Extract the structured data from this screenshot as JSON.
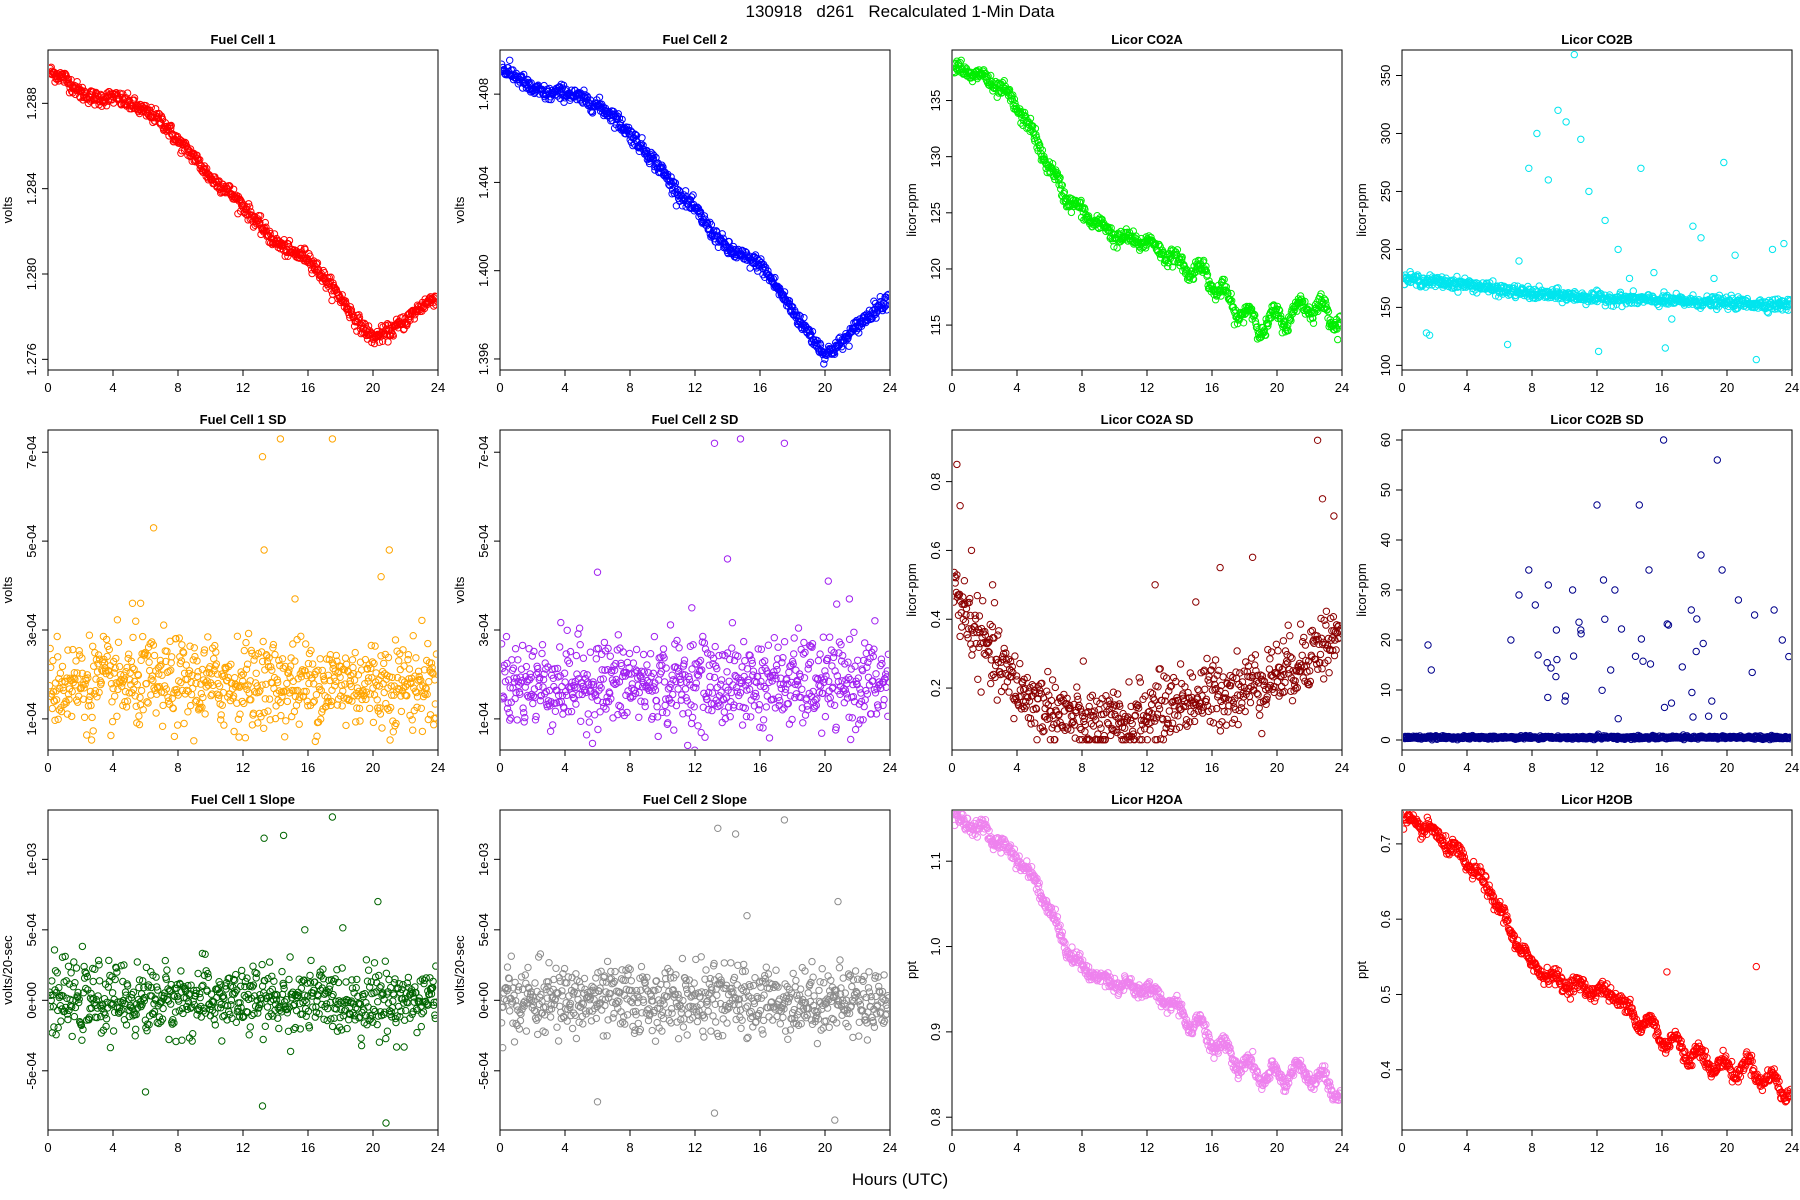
{
  "figure": {
    "title": "130918   d261   Recalculated 1-Min Data",
    "xlabel": "Hours (UTC)"
  },
  "chart_data": [
    {
      "type": "scatter",
      "title": "Fuel Cell 1",
      "ylabel": "volts",
      "xlim": [
        0,
        24
      ],
      "ylim": [
        1.2755,
        1.2905
      ],
      "yticks": [
        1.276,
        1.28,
        1.284,
        1.288
      ],
      "ytick_labels": [
        "1.276",
        "1.280",
        "1.284",
        "1.288"
      ],
      "xticks": [
        0,
        4,
        8,
        12,
        16,
        20,
        24
      ],
      "color": "#ff0000",
      "points_description": "1440 one-minute points",
      "series": [
        {
          "x": [
            0,
            1,
            2,
            3,
            4,
            5,
            6,
            7,
            8,
            9,
            10,
            11,
            12,
            13,
            14,
            15,
            16,
            17,
            18,
            19,
            20,
            21,
            22,
            23,
            24
          ],
          "y": [
            1.2895,
            1.2892,
            1.2885,
            1.2882,
            1.2883,
            1.288,
            1.2876,
            1.2872,
            1.2862,
            1.2855,
            1.2845,
            1.284,
            1.2832,
            1.2823,
            1.2815,
            1.281,
            1.2808,
            1.2798,
            1.2789,
            1.2778,
            1.277,
            1.2773,
            1.2778,
            1.2785,
            1.279
          ]
        }
      ]
    },
    {
      "type": "scatter",
      "title": "Fuel Cell 2",
      "ylabel": "volts",
      "xlim": [
        0,
        24
      ],
      "ylim": [
        1.3955,
        1.41
      ],
      "yticks": [
        1.396,
        1.4,
        1.404,
        1.408
      ],
      "ytick_labels": [
        "1.396",
        "1.400",
        "1.404",
        "1.408"
      ],
      "xticks": [
        0,
        4,
        8,
        12,
        16,
        20,
        24
      ],
      "color": "#0000ff",
      "series": [
        {
          "x": [
            0,
            1,
            2,
            3,
            4,
            5,
            6,
            7,
            8,
            9,
            10,
            11,
            12,
            13,
            14,
            15,
            16,
            17,
            18,
            19,
            20,
            21,
            22,
            23,
            24
          ],
          "y": [
            1.4092,
            1.4088,
            1.4082,
            1.408,
            1.4081,
            1.4078,
            1.4075,
            1.407,
            1.4062,
            1.4054,
            1.4045,
            1.4035,
            1.4028,
            1.4018,
            1.401,
            1.4006,
            1.4003,
            1.3993,
            1.3982,
            1.3972,
            1.3962,
            1.3967,
            1.3975,
            1.3982,
            1.3988
          ]
        }
      ]
    },
    {
      "type": "scatter",
      "title": "Licor CO2A",
      "ylabel": "licor-ppm",
      "xlim": [
        0,
        24
      ],
      "ylim": [
        111,
        139.5
      ],
      "yticks": [
        115,
        120,
        125,
        130,
        135
      ],
      "ytick_labels": [
        "115",
        "120",
        "125",
        "130",
        "135"
      ],
      "xticks": [
        0,
        4,
        8,
        12,
        16,
        20,
        24
      ],
      "color": "#00ee00",
      "series": [
        {
          "x": [
            0,
            1,
            2,
            3,
            4,
            5,
            6,
            7,
            8,
            9,
            10,
            11,
            12,
            13,
            14,
            15,
            16,
            17,
            18,
            19,
            20,
            21,
            22,
            23,
            24
          ],
          "y": [
            138,
            137.5,
            137,
            136,
            134.5,
            132,
            129,
            126.5,
            125,
            124,
            123,
            122.5,
            122.5,
            121.5,
            120.5,
            120,
            119,
            117,
            116,
            115,
            115.5,
            116,
            117,
            116,
            115.5
          ]
        }
      ]
    },
    {
      "type": "scatter",
      "title": "Licor CO2B",
      "ylabel": "licor-ppm",
      "xlim": [
        0,
        24
      ],
      "ylim": [
        96,
        372
      ],
      "yticks": [
        100,
        150,
        200,
        250,
        300,
        350
      ],
      "ytick_labels": [
        "100",
        "150",
        "200",
        "250",
        "300",
        "350"
      ],
      "xticks": [
        0,
        4,
        8,
        12,
        16,
        20,
        24
      ],
      "color": "#00e5ee",
      "series": [
        {
          "x": [
            0,
            2,
            4,
            6,
            8,
            10,
            12,
            14,
            16,
            18,
            20,
            22,
            24
          ],
          "y": [
            175,
            172,
            170,
            165,
            162,
            160,
            158,
            157,
            156,
            155,
            154,
            153,
            152
          ]
        }
      ],
      "outliers": {
        "x": [
          1.5,
          1.7,
          6.5,
          7.2,
          7.8,
          8.3,
          9.0,
          9.6,
          10.1,
          10.6,
          11.0,
          11.5,
          12.1,
          12.5,
          13.3,
          14.0,
          14.7,
          15.5,
          16.2,
          16.6,
          17.9,
          18.4,
          19.2,
          19.8,
          20.5,
          21.8,
          22.8,
          23.5
        ],
        "y": [
          128,
          126,
          118,
          190,
          270,
          300,
          260,
          320,
          310,
          368,
          295,
          250,
          112,
          225,
          200,
          175,
          270,
          180,
          115,
          140,
          220,
          210,
          175,
          275,
          195,
          105,
          200,
          205
        ]
      }
    },
    {
      "type": "scatter",
      "title": "Fuel Cell 1 SD",
      "ylabel": "volts",
      "xlim": [
        0,
        24
      ],
      "ylim": [
        3e-05,
        0.00075
      ],
      "yticks": [
        0.0001,
        0.0003,
        0.0005,
        0.0007
      ],
      "ytick_labels": [
        "1e-04",
        "3e-04",
        "5e-04",
        "7e-04"
      ],
      "xticks": [
        0,
        4,
        8,
        12,
        16,
        20,
        24
      ],
      "color": "#ffa500",
      "series": [
        {
          "name": "",
          "x": [
            0,
            24
          ],
          "y": [
            0.00018,
            0.00018
          ]
        }
      ],
      "outliers": {
        "x": [
          5.2,
          5.7,
          6.5,
          13.2,
          13.3,
          14.3,
          15.2,
          17.5,
          20.5,
          21.0
        ],
        "y": [
          0.00036,
          0.00036,
          0.00053,
          0.00069,
          0.00048,
          0.00073,
          0.00037,
          0.00073,
          0.00042,
          0.00048
        ]
      }
    },
    {
      "type": "scatter",
      "title": "Fuel Cell 2 SD",
      "ylabel": "volts",
      "xlim": [
        0,
        24
      ],
      "ylim": [
        3e-05,
        0.00075
      ],
      "yticks": [
        0.0001,
        0.0003,
        0.0005,
        0.0007
      ],
      "ytick_labels": [
        "1e-04",
        "3e-04",
        "5e-04",
        "7e-04"
      ],
      "xticks": [
        0,
        4,
        8,
        12,
        16,
        20,
        24
      ],
      "color": "#a020f0",
      "series": [
        {
          "x": [
            0,
            24
          ],
          "y": [
            0.00018,
            0.00018
          ]
        }
      ],
      "outliers": {
        "x": [
          6.0,
          11.8,
          13.2,
          14.0,
          14.8,
          17.5,
          20.2,
          21.5
        ],
        "y": [
          0.00043,
          0.00035,
          0.00072,
          0.00046,
          0.00073,
          0.00072,
          0.00041,
          0.00037
        ]
      }
    },
    {
      "type": "scatter",
      "title": "Licor CO2A SD",
      "ylabel": "licor-ppm",
      "xlim": [
        0,
        24
      ],
      "ylim": [
        0.02,
        0.95
      ],
      "yticks": [
        0.2,
        0.4,
        0.6,
        0.8
      ],
      "ytick_labels": [
        "0.2",
        "0.4",
        "0.6",
        "0.8"
      ],
      "xticks": [
        0,
        4,
        8,
        12,
        16,
        20,
        24
      ],
      "color": "#8b0000",
      "series": [
        {
          "x": [
            0,
            1,
            2,
            3,
            4,
            5,
            6,
            7,
            8,
            9,
            10,
            11,
            12,
            13,
            14,
            15,
            16,
            17,
            18,
            19,
            20,
            21,
            22,
            23,
            24
          ],
          "y": [
            0.5,
            0.4,
            0.32,
            0.26,
            0.2,
            0.16,
            0.14,
            0.12,
            0.1,
            0.09,
            0.09,
            0.1,
            0.12,
            0.14,
            0.16,
            0.17,
            0.18,
            0.19,
            0.2,
            0.22,
            0.24,
            0.26,
            0.3,
            0.33,
            0.35
          ]
        }
      ],
      "outliers": {
        "x": [
          0.3,
          0.5,
          1.2,
          2.5,
          12.5,
          15.0,
          16.5,
          18.5,
          22.5,
          22.8,
          23.5
        ],
        "y": [
          0.85,
          0.73,
          0.6,
          0.5,
          0.5,
          0.45,
          0.55,
          0.58,
          0.92,
          0.75,
          0.7
        ]
      }
    },
    {
      "type": "scatter",
      "title": "Licor CO2B SD",
      "ylabel": "licor-ppm",
      "xlim": [
        0,
        24
      ],
      "ylim": [
        -2,
        62
      ],
      "yticks": [
        0,
        10,
        20,
        30,
        40,
        50,
        60
      ],
      "ytick_labels": [
        "0",
        "10",
        "20",
        "30",
        "40",
        "50",
        "60"
      ],
      "xticks": [
        0,
        4,
        8,
        12,
        16,
        20,
        24
      ],
      "color": "#00008b",
      "series": [
        {
          "x": [
            0,
            24
          ],
          "y": [
            0.5,
            0.5
          ]
        }
      ],
      "outliers": {
        "x": [
          1.6,
          1.8,
          6.7,
          7.2,
          7.8,
          8.2,
          9.0,
          9.5,
          10.5,
          11.0,
          12.0,
          12.4,
          13.1,
          14.6,
          15.2,
          16.1,
          16.4,
          17.8,
          18.4,
          19.4,
          19.7,
          20.7,
          21.7,
          22.9,
          23.4
        ],
        "y": [
          19,
          14,
          20,
          29,
          34,
          27,
          31,
          22,
          30,
          22,
          47,
          32,
          30,
          47,
          34,
          60,
          23,
          26,
          37,
          56,
          34,
          28,
          25,
          26,
          20
        ]
      }
    },
    {
      "type": "scatter",
      "title": "Fuel Cell 1 Slope",
      "ylabel": "volts/20-sec",
      "xlim": [
        0,
        24
      ],
      "ylim": [
        -0.00092,
        0.00135
      ],
      "yticks": [
        -0.0005,
        0.0,
        0.0005,
        0.001
      ],
      "ytick_labels": [
        "-5e-04",
        "0e+00",
        "5e-04",
        "1e-03"
      ],
      "xticks": [
        0,
        4,
        8,
        12,
        16,
        20,
        24
      ],
      "color": "#006400",
      "series": [
        {
          "x": [
            0,
            24
          ],
          "y": [
            0,
            0
          ]
        }
      ],
      "outliers": {
        "x": [
          6.0,
          13.2,
          13.3,
          14.5,
          15.8,
          17.5,
          20.3,
          20.8
        ],
        "y": [
          -0.00065,
          -0.00075,
          0.00115,
          0.00117,
          0.0005,
          0.0013,
          0.0007,
          -0.00087
        ]
      }
    },
    {
      "type": "scatter",
      "title": "Fuel Cell 2 Slope",
      "ylabel": "volts/20-sec",
      "xlim": [
        0,
        24
      ],
      "ylim": [
        -0.00092,
        0.00135
      ],
      "yticks": [
        -0.0005,
        0.0,
        0.0005,
        0.001
      ],
      "ytick_labels": [
        "-5e-04",
        "0e+00",
        "5e-04",
        "1e-03"
      ],
      "xticks": [
        0,
        4,
        8,
        12,
        16,
        20,
        24
      ],
      "color": "#8c8c8c",
      "series": [
        {
          "x": [
            0,
            24
          ],
          "y": [
            0,
            0
          ]
        }
      ],
      "outliers": {
        "x": [
          6.0,
          13.2,
          13.4,
          14.5,
          15.2,
          17.5,
          20.8,
          20.6
        ],
        "y": [
          -0.00072,
          -0.0008,
          0.00122,
          0.00118,
          0.0006,
          0.00128,
          0.0007,
          -0.00085
        ]
      }
    },
    {
      "type": "scatter",
      "title": "Licor H2OA",
      "ylabel": "ppt",
      "xlim": [
        0,
        24
      ],
      "ylim": [
        0.785,
        1.16
      ],
      "yticks": [
        0.8,
        0.9,
        1.0,
        1.1
      ],
      "ytick_labels": [
        "0.8",
        "0.9",
        "1.0",
        "1.1"
      ],
      "xticks": [
        0,
        4,
        8,
        12,
        16,
        20,
        24
      ],
      "color": "#ee82ee",
      "series": [
        {
          "x": [
            0,
            1,
            2,
            3,
            4,
            5,
            6,
            7,
            8,
            9,
            10,
            11,
            12,
            13,
            14,
            15,
            16,
            17,
            18,
            19,
            20,
            21,
            22,
            23,
            24
          ],
          "y": [
            1.15,
            1.145,
            1.135,
            1.12,
            1.105,
            1.08,
            1.045,
            1.0,
            0.975,
            0.965,
            0.958,
            0.952,
            0.948,
            0.94,
            0.925,
            0.91,
            0.89,
            0.875,
            0.86,
            0.85,
            0.845,
            0.855,
            0.85,
            0.84,
            0.83
          ]
        }
      ]
    },
    {
      "type": "scatter",
      "title": "Licor H2OB",
      "ylabel": "ppt",
      "xlim": [
        0,
        24
      ],
      "ylim": [
        0.32,
        0.745
      ],
      "yticks": [
        0.4,
        0.5,
        0.6,
        0.7
      ],
      "ytick_labels": [
        "0.4",
        "0.5",
        "0.6",
        "0.7"
      ],
      "xticks": [
        0,
        4,
        8,
        12,
        16,
        20,
        24
      ],
      "color": "#ff0000",
      "series": [
        {
          "x": [
            0,
            1,
            2,
            3,
            4,
            5,
            6,
            7,
            8,
            9,
            10,
            11,
            12,
            13,
            14,
            15,
            16,
            17,
            18,
            19,
            20,
            21,
            22,
            23,
            24
          ],
          "y": [
            0.73,
            0.725,
            0.715,
            0.695,
            0.675,
            0.65,
            0.615,
            0.57,
            0.54,
            0.525,
            0.515,
            0.51,
            0.505,
            0.5,
            0.48,
            0.46,
            0.445,
            0.43,
            0.42,
            0.41,
            0.4,
            0.405,
            0.395,
            0.38,
            0.37
          ]
        }
      ],
      "outliers": {
        "x": [
          16.3,
          21.8
        ],
        "y": [
          0.53,
          0.537
        ]
      }
    }
  ]
}
